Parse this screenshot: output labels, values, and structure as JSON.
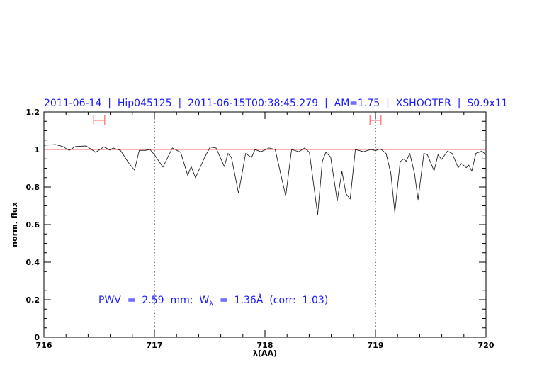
{
  "chart_data": {
    "type": "line",
    "title": "2011-06-14  |  Hip045125  |  2011-06-15T00:38:45.279  |  AM=1.75  |  XSHOOTER  |  S0.9x11",
    "xlabel": "λ(AA)",
    "ylabel": "norm. flux",
    "xlim": [
      716,
      720
    ],
    "ylim": [
      0,
      1.2
    ],
    "x_ticks": [
      "716",
      "717",
      "718",
      "719",
      "720"
    ],
    "y_ticks": [
      "0",
      "0.2",
      "0.4",
      "0.6",
      "0.8",
      "1",
      "1.2"
    ],
    "grid": false,
    "annotation": {
      "pre": "PWV  =  2.59  mm;  W",
      "sub": "λ",
      "post": "  =  1.36Å  (corr:  1.03)"
    },
    "reference_line": {
      "y": 1.0,
      "color": "#ff6666"
    },
    "vertical_markers": [
      717,
      719
    ],
    "ranges": [
      {
        "from": 716.45,
        "to": 716.55,
        "y": 1.155
      },
      {
        "from": 718.95,
        "to": 719.05,
        "y": 1.155
      }
    ],
    "colors": {
      "title": "#1a1aff",
      "spectrum": "#222222",
      "range": "#ff6666"
    },
    "series": [
      {
        "x": [
          716.0,
          716.008,
          716.105,
          716.17,
          716.229,
          716.286,
          716.383,
          716.468,
          716.543,
          716.596,
          716.628,
          716.692,
          716.767,
          716.82,
          716.863,
          716.917,
          716.96,
          717.0,
          717.077,
          717.162,
          717.237,
          717.301,
          717.333,
          717.372,
          717.45,
          717.504,
          717.558,
          717.633,
          717.665,
          717.697,
          717.761,
          717.825,
          717.878,
          717.91,
          717.964,
          718.038,
          718.092,
          718.188,
          718.241,
          718.306,
          718.359,
          718.402,
          718.477,
          718.519,
          718.551,
          718.594,
          718.654,
          718.697,
          718.733,
          718.771,
          718.818,
          718.893,
          718.957,
          719.0,
          719.043,
          719.096,
          719.139,
          719.175,
          719.224,
          719.256,
          719.278,
          719.31,
          719.353,
          719.385,
          719.438,
          719.47,
          719.53,
          719.566,
          719.598,
          719.652,
          719.694,
          719.748,
          719.78,
          719.822,
          719.844,
          719.872,
          719.908,
          719.962,
          720.0
        ],
        "y": [
          1.02,
          1.023,
          1.026,
          1.016,
          0.995,
          1.016,
          1.019,
          0.985,
          1.014,
          0.997,
          1.008,
          0.995,
          0.928,
          0.89,
          0.995,
          0.995,
          1.0,
          0.972,
          0.906,
          1.008,
          0.985,
          0.862,
          0.909,
          0.849,
          0.953,
          1.013,
          1.008,
          0.909,
          0.979,
          0.957,
          0.767,
          0.979,
          0.957,
          1.0,
          0.988,
          1.008,
          1.0,
          0.752,
          1.0,
          0.988,
          1.008,
          0.985,
          0.652,
          0.937,
          0.985,
          0.96,
          0.727,
          0.884,
          0.765,
          0.736,
          1.0,
          0.988,
          1.0,
          0.994,
          1.004,
          0.979,
          0.872,
          0.664,
          0.935,
          0.95,
          0.937,
          0.979,
          0.872,
          0.733,
          0.979,
          0.972,
          0.886,
          0.972,
          0.947,
          0.991,
          0.979,
          0.903,
          0.925,
          0.903,
          0.917,
          0.884,
          0.979,
          0.991,
          0.972
        ]
      }
    ]
  }
}
